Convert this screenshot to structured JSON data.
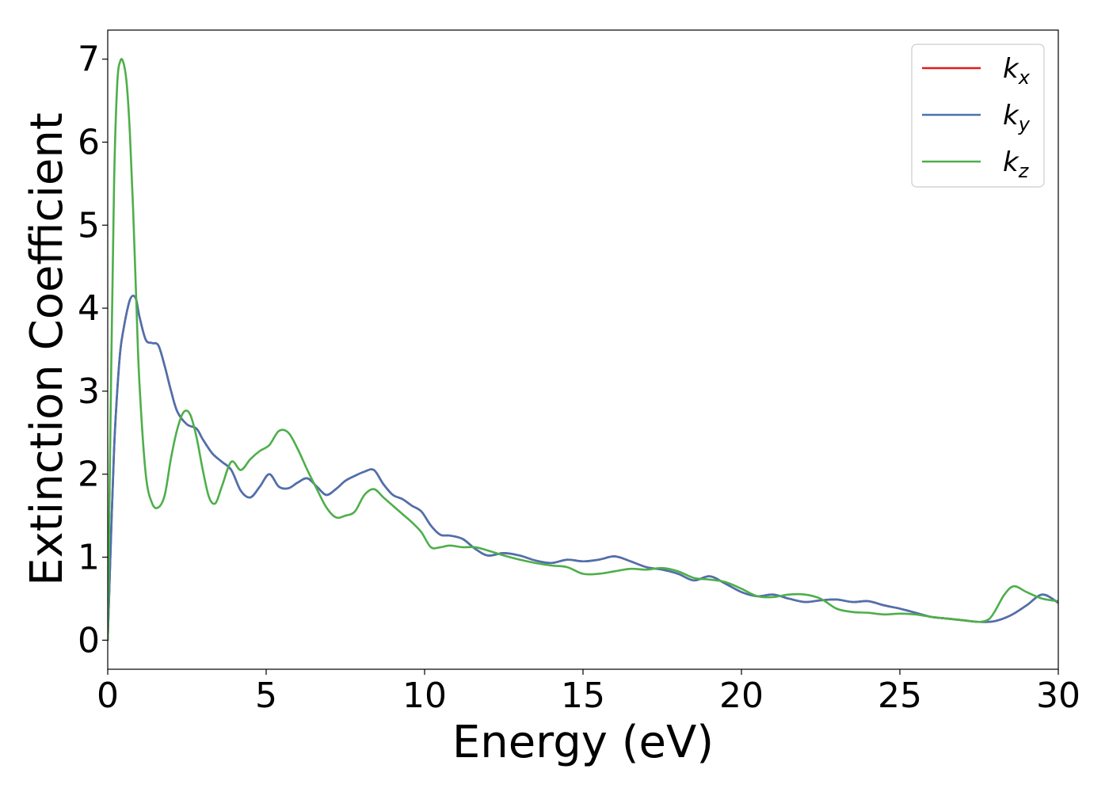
{
  "chart_data": {
    "type": "line",
    "xlabel": "Energy (eV)",
    "ylabel": "Extinction Coefficient",
    "xlim": [
      0,
      30
    ],
    "ylim": [
      -0.35,
      7.35
    ],
    "xticks": [
      0,
      5,
      10,
      15,
      20,
      25,
      30
    ],
    "yticks": [
      0,
      1,
      2,
      3,
      4,
      5,
      6,
      7
    ],
    "legend_position": "top-right",
    "grid": false,
    "series": [
      {
        "name": "k",
        "subscript": "x",
        "color": "#e41a1c",
        "x": [
          0,
          0.1,
          0.2,
          0.3,
          0.4,
          0.5,
          0.6,
          0.7,
          0.8,
          0.9,
          1.0,
          1.2,
          1.4,
          1.6,
          1.8,
          2.0,
          2.2,
          2.5,
          2.8,
          3.0,
          3.3,
          3.6,
          3.9,
          4.2,
          4.5,
          4.8,
          5.1,
          5.4,
          5.7,
          6.0,
          6.3,
          6.6,
          6.9,
          7.2,
          7.5,
          7.8,
          8.1,
          8.4,
          8.7,
          9.0,
          9.3,
          9.6,
          9.9,
          10.2,
          10.5,
          10.8,
          11.2,
          11.6,
          12.0,
          12.5,
          13.0,
          13.5,
          14.0,
          14.5,
          15.0,
          15.5,
          16.0,
          16.5,
          17.0,
          17.5,
          18.0,
          18.5,
          19.0,
          19.5,
          20.0,
          20.5,
          21.0,
          21.5,
          22.0,
          22.5,
          23.0,
          23.5,
          24.0,
          24.5,
          25.0,
          25.5,
          26.0,
          26.5,
          27.0,
          27.5,
          28.0,
          28.5,
          29.0,
          29.5,
          30.0
        ],
        "values": [
          0,
          1.2,
          2.3,
          3.0,
          3.5,
          3.75,
          3.95,
          4.1,
          4.15,
          4.1,
          3.9,
          3.62,
          3.58,
          3.55,
          3.3,
          3.0,
          2.75,
          2.6,
          2.55,
          2.42,
          2.25,
          2.15,
          2.05,
          1.8,
          1.72,
          1.85,
          2.0,
          1.85,
          1.83,
          1.9,
          1.95,
          1.85,
          1.75,
          1.82,
          1.92,
          1.98,
          2.03,
          2.05,
          1.88,
          1.75,
          1.7,
          1.62,
          1.55,
          1.38,
          1.27,
          1.26,
          1.22,
          1.1,
          1.02,
          1.05,
          1.02,
          0.96,
          0.93,
          0.97,
          0.95,
          0.97,
          1.01,
          0.95,
          0.88,
          0.85,
          0.8,
          0.72,
          0.77,
          0.68,
          0.58,
          0.53,
          0.55,
          0.5,
          0.46,
          0.48,
          0.49,
          0.46,
          0.47,
          0.42,
          0.38,
          0.33,
          0.28,
          0.26,
          0.24,
          0.22,
          0.23,
          0.3,
          0.42,
          0.55,
          0.45
        ]
      },
      {
        "name": "k",
        "subscript": "y",
        "color": "#4a72b0",
        "x": [
          0,
          0.1,
          0.2,
          0.3,
          0.4,
          0.5,
          0.6,
          0.7,
          0.8,
          0.9,
          1.0,
          1.2,
          1.4,
          1.6,
          1.8,
          2.0,
          2.2,
          2.5,
          2.8,
          3.0,
          3.3,
          3.6,
          3.9,
          4.2,
          4.5,
          4.8,
          5.1,
          5.4,
          5.7,
          6.0,
          6.3,
          6.6,
          6.9,
          7.2,
          7.5,
          7.8,
          8.1,
          8.4,
          8.7,
          9.0,
          9.3,
          9.6,
          9.9,
          10.2,
          10.5,
          10.8,
          11.2,
          11.6,
          12.0,
          12.5,
          13.0,
          13.5,
          14.0,
          14.5,
          15.0,
          15.5,
          16.0,
          16.5,
          17.0,
          17.5,
          18.0,
          18.5,
          19.0,
          19.5,
          20.0,
          20.5,
          21.0,
          21.5,
          22.0,
          22.5,
          23.0,
          23.5,
          24.0,
          24.5,
          25.0,
          25.5,
          26.0,
          26.5,
          27.0,
          27.5,
          28.0,
          28.5,
          29.0,
          29.5,
          30.0
        ],
        "values": [
          0,
          1.2,
          2.3,
          3.0,
          3.5,
          3.75,
          3.95,
          4.1,
          4.15,
          4.1,
          3.9,
          3.62,
          3.58,
          3.55,
          3.3,
          3.0,
          2.75,
          2.6,
          2.55,
          2.42,
          2.25,
          2.15,
          2.05,
          1.8,
          1.72,
          1.85,
          2.0,
          1.85,
          1.83,
          1.9,
          1.95,
          1.85,
          1.75,
          1.82,
          1.92,
          1.98,
          2.03,
          2.05,
          1.88,
          1.75,
          1.7,
          1.62,
          1.55,
          1.38,
          1.27,
          1.26,
          1.22,
          1.1,
          1.02,
          1.05,
          1.02,
          0.96,
          0.93,
          0.97,
          0.95,
          0.97,
          1.01,
          0.95,
          0.88,
          0.85,
          0.8,
          0.72,
          0.77,
          0.68,
          0.58,
          0.53,
          0.55,
          0.5,
          0.46,
          0.48,
          0.49,
          0.46,
          0.47,
          0.42,
          0.38,
          0.33,
          0.28,
          0.26,
          0.24,
          0.22,
          0.23,
          0.3,
          0.42,
          0.55,
          0.45
        ]
      },
      {
        "name": "k",
        "subscript": "z",
        "color": "#4daf4a",
        "x": [
          0,
          0.1,
          0.2,
          0.3,
          0.4,
          0.5,
          0.6,
          0.7,
          0.8,
          0.9,
          1.0,
          1.2,
          1.4,
          1.6,
          1.8,
          2.0,
          2.2,
          2.4,
          2.6,
          2.8,
          3.0,
          3.2,
          3.4,
          3.6,
          3.9,
          4.2,
          4.5,
          4.8,
          5.1,
          5.4,
          5.7,
          6.0,
          6.3,
          6.6,
          6.9,
          7.2,
          7.5,
          7.8,
          8.1,
          8.4,
          8.7,
          9.0,
          9.3,
          9.6,
          9.9,
          10.2,
          10.5,
          10.8,
          11.2,
          11.6,
          12.0,
          12.5,
          13.0,
          13.5,
          14.0,
          14.5,
          15.0,
          15.5,
          16.0,
          16.5,
          17.0,
          17.5,
          18.0,
          18.5,
          19.0,
          19.5,
          20.0,
          20.5,
          21.0,
          21.5,
          22.0,
          22.5,
          23.0,
          23.5,
          24.0,
          24.5,
          25.0,
          25.5,
          26.0,
          26.5,
          27.0,
          27.5,
          27.8,
          28.0,
          28.3,
          28.6,
          29.0,
          29.5,
          30.0
        ],
        "values": [
          0,
          3.0,
          5.5,
          6.7,
          6.98,
          6.95,
          6.7,
          6.1,
          5.2,
          4.1,
          3.1,
          2.0,
          1.65,
          1.6,
          1.75,
          2.2,
          2.55,
          2.75,
          2.72,
          2.45,
          2.05,
          1.72,
          1.65,
          1.85,
          2.15,
          2.05,
          2.18,
          2.28,
          2.35,
          2.52,
          2.5,
          2.3,
          2.05,
          1.82,
          1.6,
          1.48,
          1.5,
          1.55,
          1.75,
          1.82,
          1.72,
          1.62,
          1.52,
          1.42,
          1.3,
          1.12,
          1.12,
          1.14,
          1.12,
          1.12,
          1.08,
          1.02,
          0.97,
          0.93,
          0.9,
          0.88,
          0.8,
          0.8,
          0.83,
          0.86,
          0.85,
          0.87,
          0.83,
          0.75,
          0.73,
          0.7,
          0.62,
          0.53,
          0.52,
          0.55,
          0.55,
          0.5,
          0.38,
          0.34,
          0.33,
          0.31,
          0.32,
          0.31,
          0.28,
          0.26,
          0.24,
          0.22,
          0.25,
          0.35,
          0.55,
          0.65,
          0.58,
          0.5,
          0.47
        ]
      }
    ]
  }
}
